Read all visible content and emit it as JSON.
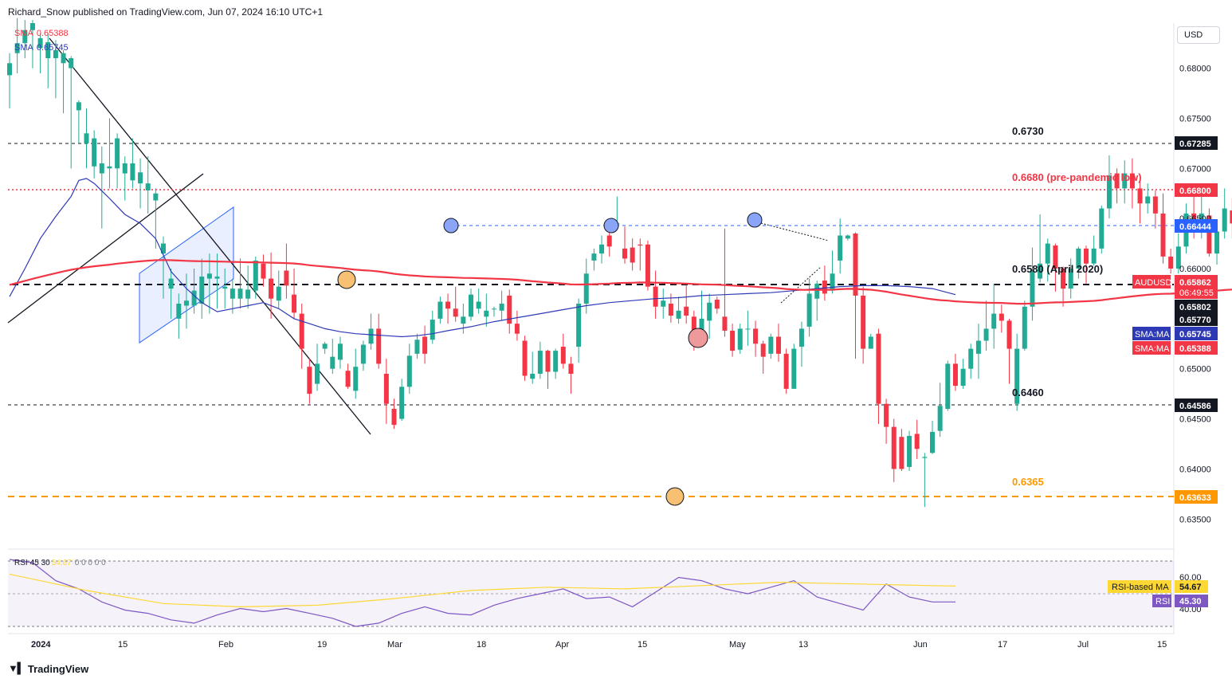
{
  "header": "Richard_Snow published on TradingView.com, Jun 07, 2024 16:10 UTC+1",
  "footer": {
    "brand": "TradingView",
    "logo_icon": "tradingview-logo-icon"
  },
  "currency_button": "USD",
  "legend": {
    "sma200": {
      "label": "SMA",
      "value": "0.65388",
      "color": "#f23645"
    },
    "sma50": {
      "label": "SMA",
      "value": "0.65745",
      "color": "#2e3ab5"
    }
  },
  "rsi_legend": {
    "label": "RSI",
    "params": "45 30",
    "value": "54.67",
    "rest": "0 0 0 0 0"
  },
  "y_axis": {
    "ticks": [
      "0.68000",
      "0.67500",
      "0.67000",
      "0.66500",
      "0.66000",
      "0.65500",
      "0.65000",
      "0.64500",
      "0.64000",
      "0.63500"
    ],
    "rsi_ticks": [
      "60.00",
      "40.00"
    ]
  },
  "x_axis": [
    "2024",
    "15",
    "Feb",
    "19",
    "Mar",
    "18",
    "Apr",
    "15",
    "May",
    "13",
    "Jun",
    "17",
    "Jul",
    "15"
  ],
  "annotations": {
    "l6730": "0.6730",
    "l6680": "0.6680 (pre-pandemic low)",
    "l6580": "0.6580 (April 2020)",
    "l6460": "0.6460",
    "l6365": "0.6365"
  },
  "price_tags": {
    "p67285": "0.67285",
    "p66800": "0.66800",
    "p66444": "0.66444",
    "audusd_label": "AUDUSD",
    "audusd_price": "0.65862",
    "countdown": "06:49:55",
    "p65802": "0.65802",
    "p65770": "0.65770",
    "sma_ma_label_1": "SMA:MA",
    "sma50_tag": "0.65745",
    "sma_ma_label_2": "SMA:MA",
    "sma200_tag": "0.65388",
    "p64586": "0.64586",
    "p63633": "0.63633",
    "rsi_ma_label": "RSI-based MA",
    "rsi_ma_value": "54.67",
    "rsi_label": "RSI",
    "rsi_value": "45.30"
  },
  "colors": {
    "up": "#22ab94",
    "down": "#f23645",
    "sma50": "#2e3ab5",
    "sma200": "#f23645",
    "orange": "#ff9800",
    "rsi": "#7e57c2",
    "rsi_ma": "#fdd835"
  },
  "chart_data": {
    "type": "candlestick",
    "symbol": "AUDUSD",
    "ylim": [
      0.632,
      0.6845
    ],
    "candles": [
      [
        0.6793,
        0.6805,
        0.676,
        0.6815
      ],
      [
        0.6815,
        0.6825,
        0.6795,
        0.685
      ],
      [
        0.6825,
        0.6838,
        0.681,
        0.6848
      ],
      [
        0.6838,
        0.6845,
        0.68,
        0.6848
      ],
      [
        0.682,
        0.683,
        0.6795,
        0.6835
      ],
      [
        0.681,
        0.6826,
        0.678,
        0.6835
      ],
      [
        0.681,
        0.6818,
        0.677,
        0.6828
      ],
      [
        0.6805,
        0.6815,
        0.6755,
        0.6818
      ],
      [
        0.68,
        0.681,
        0.67,
        0.6812
      ],
      [
        0.6758,
        0.6766,
        0.6725,
        0.6768
      ],
      [
        0.6725,
        0.6735,
        0.67,
        0.676
      ],
      [
        0.6702,
        0.673,
        0.669,
        0.6738
      ],
      [
        0.6695,
        0.6705,
        0.664,
        0.6722
      ],
      [
        0.67,
        0.6702,
        0.668,
        0.675
      ],
      [
        0.67,
        0.673,
        0.668,
        0.6735
      ],
      [
        0.6695,
        0.6705,
        0.6668,
        0.6712
      ],
      [
        0.6688,
        0.6705,
        0.668,
        0.673
      ],
      [
        0.6685,
        0.6696,
        0.666,
        0.671
      ],
      [
        0.6678,
        0.6685,
        0.6655,
        0.6712
      ],
      [
        0.6668,
        0.6675,
        0.662,
        0.668
      ],
      [
        0.6615,
        0.6625,
        0.657,
        0.6632
      ],
      [
        0.658,
        0.659,
        0.655,
        0.66
      ],
      [
        0.655,
        0.6565,
        0.653,
        0.6575
      ],
      [
        0.6563,
        0.6568,
        0.654,
        0.6595
      ],
      [
        0.6563,
        0.6578,
        0.6555,
        0.66
      ],
      [
        0.6565,
        0.6592,
        0.655,
        0.661
      ],
      [
        0.659,
        0.6595,
        0.6555,
        0.6615
      ],
      [
        0.659,
        0.6592,
        0.656,
        0.6615
      ],
      [
        0.658,
        0.6582,
        0.656,
        0.66
      ],
      [
        0.657,
        0.658,
        0.6555,
        0.659
      ],
      [
        0.657,
        0.658,
        0.656,
        0.661
      ],
      [
        0.657,
        0.6579,
        0.656,
        0.6603
      ],
      [
        0.6578,
        0.6608,
        0.657,
        0.6612
      ],
      [
        0.6605,
        0.659,
        0.6582,
        0.6614
      ],
      [
        0.659,
        0.657,
        0.655,
        0.6616
      ],
      [
        0.6568,
        0.6582,
        0.656,
        0.6598
      ],
      [
        0.6598,
        0.6583,
        0.657,
        0.6625
      ],
      [
        0.6574,
        0.6556,
        0.655,
        0.66
      ],
      [
        0.6555,
        0.652,
        0.65,
        0.6565
      ],
      [
        0.6502,
        0.6475,
        0.6465,
        0.651
      ],
      [
        0.6485,
        0.6505,
        0.6478,
        0.6525
      ],
      [
        0.652,
        0.6525,
        0.6515,
        0.6527
      ],
      [
        0.65,
        0.6512,
        0.6495,
        0.653
      ],
      [
        0.6509,
        0.6525,
        0.65,
        0.6532
      ],
      [
        0.6498,
        0.6482,
        0.648,
        0.6505
      ],
      [
        0.6478,
        0.6502,
        0.647,
        0.652
      ],
      [
        0.6505,
        0.6524,
        0.6498,
        0.6528
      ],
      [
        0.6525,
        0.654,
        0.6519,
        0.6555
      ],
      [
        0.654,
        0.6505,
        0.65,
        0.6555
      ],
      [
        0.6495,
        0.6465,
        0.6445,
        0.651
      ],
      [
        0.646,
        0.6444,
        0.644,
        0.647
      ],
      [
        0.645,
        0.6482,
        0.6448,
        0.649
      ],
      [
        0.6482,
        0.6513,
        0.6475,
        0.6525
      ],
      [
        0.6515,
        0.6529,
        0.651,
        0.6535
      ],
      [
        0.6532,
        0.6515,
        0.6505,
        0.6543
      ],
      [
        0.6529,
        0.6549,
        0.6525,
        0.6558
      ],
      [
        0.655,
        0.6567,
        0.6545,
        0.6572
      ],
      [
        0.6567,
        0.656,
        0.6545,
        0.6575
      ],
      [
        0.656,
        0.6552,
        0.6547,
        0.6582
      ],
      [
        0.6545,
        0.6552,
        0.6535,
        0.6565
      ],
      [
        0.6552,
        0.6574,
        0.6548,
        0.658
      ],
      [
        0.656,
        0.6567,
        0.6555,
        0.658
      ],
      [
        0.6552,
        0.6558,
        0.6542,
        0.6575
      ],
      [
        0.656,
        0.656,
        0.6552,
        0.6562
      ],
      [
        0.6558,
        0.6565,
        0.6548,
        0.6578
      ],
      [
        0.6573,
        0.6545,
        0.6535,
        0.6579
      ],
      [
        0.6545,
        0.6535,
        0.6528,
        0.6558
      ],
      [
        0.6528,
        0.6493,
        0.6488,
        0.6533
      ],
      [
        0.649,
        0.6495,
        0.6485,
        0.6517
      ],
      [
        0.6495,
        0.6518,
        0.649,
        0.6527
      ],
      [
        0.6518,
        0.6497,
        0.648,
        0.6519
      ],
      [
        0.6497,
        0.6518,
        0.649,
        0.652
      ],
      [
        0.6522,
        0.6505,
        0.65,
        0.6535
      ],
      [
        0.6505,
        0.6495,
        0.6475,
        0.6512
      ],
      [
        0.6522,
        0.6565,
        0.6506,
        0.657
      ],
      [
        0.6565,
        0.6595,
        0.6555,
        0.661
      ],
      [
        0.6608,
        0.6615,
        0.6598,
        0.662
      ],
      [
        0.6615,
        0.6624,
        0.6605,
        0.6633
      ],
      [
        0.6633,
        0.6622,
        0.6612,
        0.6643
      ],
      [
        0.6645,
        0.6645,
        0.6643,
        0.6672
      ],
      [
        0.662,
        0.661,
        0.6605,
        0.6642
      ],
      [
        0.6621,
        0.6606,
        0.6598,
        0.663
      ],
      [
        0.6624,
        0.6623,
        0.6598,
        0.663
      ],
      [
        0.6624,
        0.6582,
        0.6578,
        0.6628
      ],
      [
        0.6582,
        0.6562,
        0.655,
        0.6598
      ],
      [
        0.6562,
        0.6568,
        0.655,
        0.658
      ],
      [
        0.6565,
        0.6553,
        0.6546,
        0.6575
      ],
      [
        0.655,
        0.6558,
        0.6545,
        0.6572
      ],
      [
        0.6562,
        0.6553,
        0.6545,
        0.6583
      ],
      [
        0.6552,
        0.6525,
        0.6518,
        0.6558
      ],
      [
        0.6532,
        0.655,
        0.6525,
        0.6578
      ],
      [
        0.6548,
        0.6566,
        0.653,
        0.6575
      ],
      [
        0.6569,
        0.656,
        0.6555,
        0.6572
      ],
      [
        0.6552,
        0.6538,
        0.6532,
        0.664
      ],
      [
        0.6538,
        0.6518,
        0.6512,
        0.6545
      ],
      [
        0.6519,
        0.654,
        0.6515,
        0.6545
      ],
      [
        0.654,
        0.654,
        0.6523,
        0.6558
      ],
      [
        0.654,
        0.6525,
        0.6512,
        0.6548
      ],
      [
        0.6525,
        0.6512,
        0.6495,
        0.6528
      ],
      [
        0.6515,
        0.6532,
        0.651,
        0.6535
      ],
      [
        0.6532,
        0.6515,
        0.6507,
        0.6545
      ],
      [
        0.6515,
        0.648,
        0.6475,
        0.652
      ],
      [
        0.648,
        0.652,
        0.648,
        0.6525
      ],
      [
        0.6522,
        0.654,
        0.6502,
        0.6547
      ],
      [
        0.6542,
        0.6575,
        0.6532,
        0.659
      ],
      [
        0.657,
        0.6585,
        0.6548,
        0.6588
      ],
      [
        0.6588,
        0.6575,
        0.6568,
        0.6603
      ],
      [
        0.6578,
        0.6595,
        0.6575,
        0.6618
      ],
      [
        0.6608,
        0.6633,
        0.6595,
        0.665
      ],
      [
        0.663,
        0.6633,
        0.6628,
        0.6634
      ],
      [
        0.6635,
        0.6573,
        0.651,
        0.6636
      ],
      [
        0.6573,
        0.652,
        0.6505,
        0.6582
      ],
      [
        0.652,
        0.6532,
        0.6525,
        0.6535
      ],
      [
        0.6535,
        0.6465,
        0.6445,
        0.654
      ],
      [
        0.6465,
        0.6442,
        0.6425,
        0.647
      ],
      [
        0.6442,
        0.64,
        0.6387,
        0.645
      ],
      [
        0.6432,
        0.64,
        0.6398,
        0.644
      ],
      [
        0.6402,
        0.6433,
        0.6398,
        0.6438
      ],
      [
        0.6435,
        0.642,
        0.641,
        0.6449
      ],
      [
        0.6411,
        0.6412,
        0.6362,
        0.6416
      ],
      [
        0.6416,
        0.6437,
        0.6415,
        0.6448
      ],
      [
        0.6438,
        0.6463,
        0.6432,
        0.6486
      ],
      [
        0.646,
        0.6505,
        0.6458,
        0.6508
      ],
      [
        0.6505,
        0.6483,
        0.6478,
        0.6515
      ],
      [
        0.6483,
        0.65,
        0.648,
        0.651
      ],
      [
        0.65,
        0.652,
        0.649,
        0.6525
      ],
      [
        0.6515,
        0.6528,
        0.649,
        0.6545
      ],
      [
        0.6528,
        0.654,
        0.6518,
        0.6568
      ],
      [
        0.654,
        0.6555,
        0.652,
        0.6585
      ],
      [
        0.6555,
        0.6548,
        0.6536,
        0.6564
      ],
      [
        0.6548,
        0.652,
        0.6485,
        0.655
      ],
      [
        0.6465,
        0.652,
        0.6458,
        0.6535
      ],
      [
        0.652,
        0.6562,
        0.6518,
        0.6568
      ],
      [
        0.6562,
        0.6598,
        0.6548,
        0.6621
      ],
      [
        0.659,
        0.6605,
        0.6586,
        0.6654
      ],
      [
        0.6605,
        0.6625,
        0.6587,
        0.663
      ],
      [
        0.6623,
        0.66,
        0.6577,
        0.6625
      ],
      [
        0.66,
        0.658,
        0.6562,
        0.6602
      ],
      [
        0.658,
        0.66,
        0.657,
        0.661
      ],
      [
        0.66,
        0.662,
        0.659,
        0.6622
      ],
      [
        0.662,
        0.6605,
        0.6585,
        0.6623
      ],
      [
        0.6605,
        0.662,
        0.6603,
        0.6633
      ],
      [
        0.662,
        0.666,
        0.6615,
        0.6663
      ],
      [
        0.666,
        0.6693,
        0.665,
        0.6713
      ],
      [
        0.6695,
        0.668,
        0.6665,
        0.67
      ],
      [
        0.668,
        0.6695,
        0.6665,
        0.6708
      ],
      [
        0.6695,
        0.668,
        0.666,
        0.671
      ],
      [
        0.668,
        0.6665,
        0.6645,
        0.669
      ],
      [
        0.6665,
        0.6672,
        0.6655,
        0.6685
      ],
      [
        0.6672,
        0.6655,
        0.664,
        0.6678
      ],
      [
        0.6655,
        0.6612,
        0.6605,
        0.6675
      ],
      [
        0.6612,
        0.66,
        0.6595,
        0.662
      ],
      [
        0.66,
        0.6622,
        0.6595,
        0.6635
      ],
      [
        0.6622,
        0.6655,
        0.6615,
        0.6665
      ],
      [
        0.6655,
        0.6645,
        0.663,
        0.6675
      ],
      [
        0.6645,
        0.6655,
        0.663,
        0.668
      ],
      [
        0.6653,
        0.6615,
        0.6612,
        0.666
      ],
      [
        0.6615,
        0.6637,
        0.6604,
        0.664
      ],
      [
        0.6637,
        0.666,
        0.663,
        0.668
      ],
      [
        0.6658,
        0.6645,
        0.663,
        0.667
      ],
      [
        0.6645,
        0.6658,
        0.6632,
        0.6665
      ],
      [
        0.666,
        0.669,
        0.6645,
        0.6697
      ],
      [
        0.669,
        0.6662,
        0.6655,
        0.6695
      ],
      [
        0.6662,
        0.6663,
        0.663,
        0.6665
      ],
      [
        0.6658,
        0.6678,
        0.663,
        0.6683
      ],
      [
        0.6675,
        0.6587,
        0.6582,
        0.668
      ]
    ],
    "sma50": [
      [
        0,
        0.6572
      ],
      [
        2,
        0.66
      ],
      [
        4,
        0.663
      ],
      [
        6,
        0.6652
      ],
      [
        8,
        0.6672
      ],
      [
        9,
        0.6688
      ],
      [
        10,
        0.669
      ],
      [
        11,
        0.6685
      ],
      [
        13,
        0.667
      ],
      [
        15,
        0.6654
      ],
      [
        17,
        0.6645
      ],
      [
        19,
        0.663
      ],
      [
        21,
        0.6597
      ],
      [
        23,
        0.658
      ],
      [
        25,
        0.6566
      ],
      [
        27,
        0.6557
      ],
      [
        29,
        0.656
      ],
      [
        31,
        0.6563
      ],
      [
        33,
        0.6566
      ],
      [
        35,
        0.656
      ],
      [
        37,
        0.655
      ],
      [
        39,
        0.6545
      ],
      [
        41,
        0.654
      ],
      [
        43,
        0.6537
      ],
      [
        45,
        0.6535
      ],
      [
        47,
        0.6534
      ],
      [
        49,
        0.6533
      ],
      [
        51,
        0.6532
      ],
      [
        53,
        0.6533
      ],
      [
        55,
        0.6535
      ],
      [
        57,
        0.6538
      ],
      [
        60,
        0.6542
      ],
      [
        63,
        0.6547
      ],
      [
        66,
        0.6551
      ],
      [
        69,
        0.6555
      ],
      [
        72,
        0.6559
      ],
      [
        75,
        0.6563
      ],
      [
        78,
        0.6566
      ],
      [
        81,
        0.6568
      ],
      [
        84,
        0.657
      ],
      [
        87,
        0.6571
      ],
      [
        90,
        0.6573
      ],
      [
        93,
        0.6574
      ],
      [
        96,
        0.6575
      ],
      [
        99,
        0.6576
      ],
      [
        102,
        0.6578
      ],
      [
        105,
        0.658
      ],
      [
        108,
        0.6582
      ],
      [
        111,
        0.6583
      ],
      [
        114,
        0.6583
      ],
      [
        117,
        0.6582
      ],
      [
        120,
        0.658
      ],
      [
        123,
        0.6574
      ]
    ]
  },
  "rsi": {
    "ylim": [
      25,
      72
    ],
    "rsi": [
      [
        0,
        71
      ],
      [
        3,
        69
      ],
      [
        6,
        58
      ],
      [
        9,
        53
      ],
      [
        12,
        45
      ],
      [
        15,
        40
      ],
      [
        18,
        38
      ],
      [
        21,
        34
      ],
      [
        24,
        32
      ],
      [
        27,
        37
      ],
      [
        30,
        41
      ],
      [
        33,
        39
      ],
      [
        36,
        41
      ],
      [
        39,
        38
      ],
      [
        42,
        35
      ],
      [
        45,
        30
      ],
      [
        48,
        32
      ],
      [
        51,
        38
      ],
      [
        54,
        42
      ],
      [
        57,
        38
      ],
      [
        60,
        37
      ],
      [
        63,
        43
      ],
      [
        66,
        47
      ],
      [
        69,
        50
      ],
      [
        72,
        53
      ],
      [
        75,
        47
      ],
      [
        78,
        48
      ],
      [
        81,
        42
      ],
      [
        84,
        51
      ],
      [
        87,
        60
      ],
      [
        90,
        58
      ],
      [
        93,
        53
      ],
      [
        96,
        50
      ],
      [
        99,
        54
      ],
      [
        102,
        58
      ],
      [
        105,
        48
      ],
      [
        108,
        44
      ],
      [
        111,
        40
      ],
      [
        114,
        56
      ],
      [
        117,
        48
      ],
      [
        120,
        45
      ],
      [
        123,
        45
      ]
    ],
    "rsi_ma": [
      [
        0,
        62
      ],
      [
        10,
        52
      ],
      [
        20,
        44
      ],
      [
        30,
        42
      ],
      [
        40,
        43
      ],
      [
        50,
        47
      ],
      [
        60,
        52
      ],
      [
        70,
        54
      ],
      [
        80,
        53
      ],
      [
        90,
        55
      ],
      [
        100,
        57
      ],
      [
        110,
        56
      ],
      [
        120,
        55
      ],
      [
        123,
        54.67
      ]
    ]
  }
}
